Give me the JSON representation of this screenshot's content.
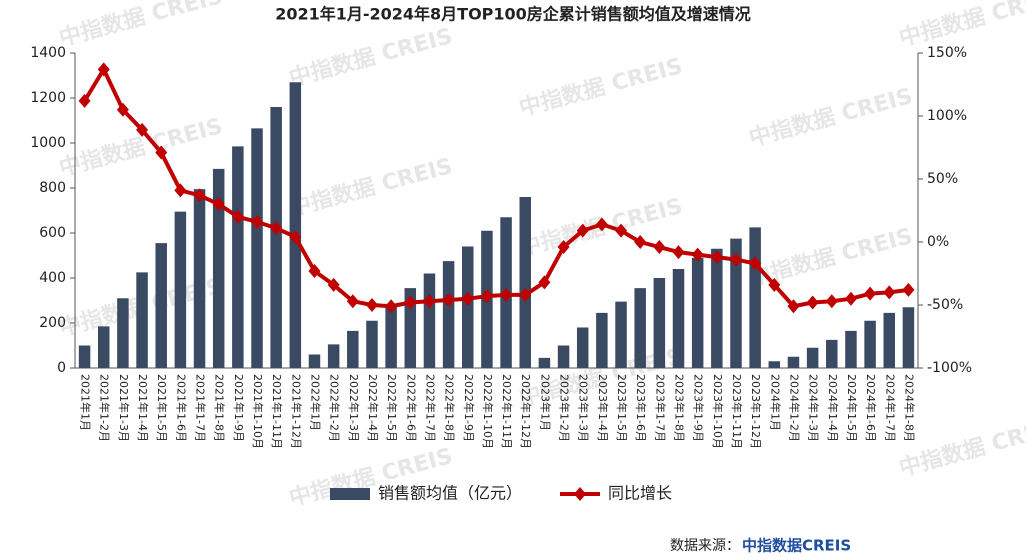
{
  "chart_data": {
    "type": "bar-line",
    "title": "2021年1月-2024年8月TOP100房企累计销售额均值及增速情况",
    "categories": [
      "2021年1月",
      "2021年1-2月",
      "2021年1-3月",
      "2021年1-4月",
      "2021年1-5月",
      "2021年1-6月",
      "2021年1-7月",
      "2021年1-8月",
      "2021年1-9月",
      "2021年1-10月",
      "2021年1-11月",
      "2021年1-12月",
      "2022年1月",
      "2022年1-2月",
      "2022年1-3月",
      "2022年1-4月",
      "2022年1-5月",
      "2022年1-6月",
      "2022年1-7月",
      "2022年1-8月",
      "2022年1-9月",
      "2022年1-10月",
      "2022年1-11月",
      "2022年1-12月",
      "2023年1月",
      "2023年1-2月",
      "2023年1-3月",
      "2023年1-4月",
      "2023年1-5月",
      "2023年1-6月",
      "2023年1-7月",
      "2023年1-8月",
      "2023年1-9月",
      "2023年1-10月",
      "2023年1-11月",
      "2023年1-12月",
      "2024年1月",
      "2024年1-2月",
      "2024年1-3月",
      "2024年1-4月",
      "2024年1-5月",
      "2024年1-6月",
      "2024年1-7月",
      "2024年1-8月"
    ],
    "series": [
      {
        "name": "销售额均值（亿元）",
        "type": "bar",
        "color": "#3b4a63",
        "values": [
          100,
          185,
          310,
          425,
          555,
          695,
          795,
          885,
          985,
          1065,
          1160,
          1270,
          60,
          105,
          165,
          210,
          285,
          355,
          420,
          475,
          540,
          610,
          670,
          760,
          45,
          100,
          180,
          245,
          295,
          355,
          400,
          440,
          490,
          530,
          575,
          625,
          30,
          50,
          90,
          125,
          165,
          210,
          245,
          270
        ]
      },
      {
        "name": "同比增长",
        "type": "line",
        "axis": "y2",
        "color": "#c00000",
        "values": [
          112,
          137,
          105,
          89,
          71,
          41,
          37,
          30,
          20,
          16,
          11,
          4,
          -23,
          -34,
          -47,
          -50,
          -51,
          -48,
          -47,
          -46,
          -45,
          -43,
          -42,
          -42,
          -32,
          -4,
          9,
          14,
          9,
          0,
          -4,
          -8,
          -10,
          -12,
          -14,
          -17,
          -34,
          -51,
          -48,
          -47,
          -45,
          -41,
          -40,
          -38
        ]
      }
    ],
    "ylim": [
      0,
      1400
    ],
    "yticks": [
      0,
      200,
      400,
      600,
      800,
      1000,
      1200,
      1400
    ],
    "y2lim": [
      -100,
      150
    ],
    "y2ticks": [
      {
        "value": -100,
        "label": "-100%"
      },
      {
        "value": -50,
        "label": "-50%"
      },
      {
        "value": 0,
        "label": "0%"
      },
      {
        "value": 50,
        "label": "50%"
      },
      {
        "value": 100,
        "label": "100%"
      },
      {
        "value": 150,
        "label": "150%"
      }
    ],
    "legend": "bottom",
    "source_label": "数据来源：",
    "source_name": "中指数据CREIS",
    "watermark": "中指数据 CREIS"
  }
}
